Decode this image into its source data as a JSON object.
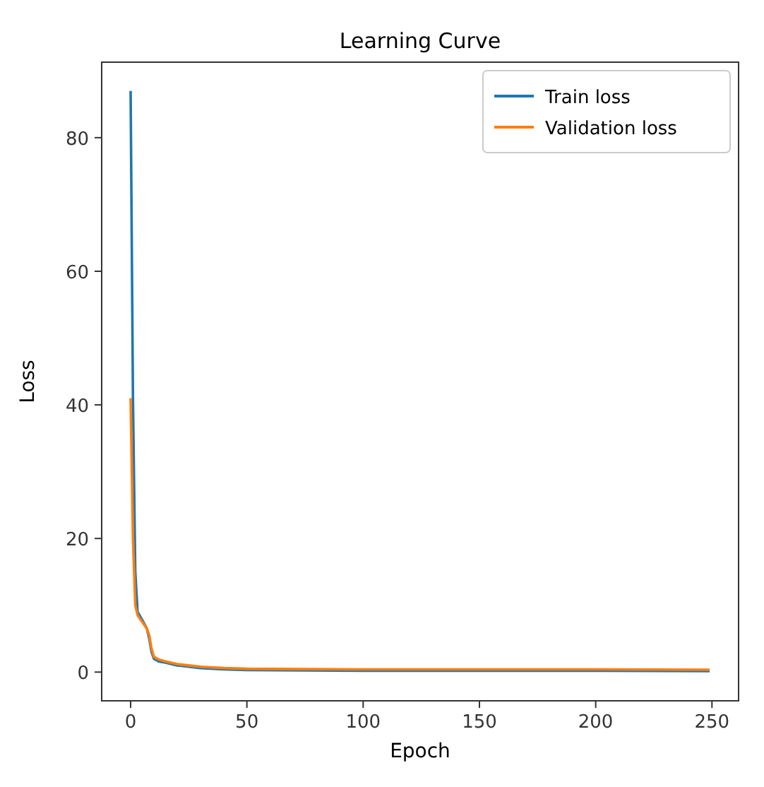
{
  "chart_data": {
    "type": "line",
    "title": "Learning Curve",
    "xlabel": "Epoch",
    "ylabel": "Loss",
    "xlim": [
      -12.45,
      261.45
    ],
    "ylim": [
      -4.3,
      91.3
    ],
    "xticks": [
      0,
      50,
      100,
      150,
      200,
      250
    ],
    "yticks": [
      0,
      20,
      40,
      60,
      80
    ],
    "legend": "top right",
    "grid": false,
    "series": [
      {
        "name": "Train loss",
        "color": "#1f77b4",
        "x": [
          0,
          1,
          2,
          3,
          5,
          7,
          8,
          9,
          10,
          12,
          15,
          20,
          25,
          30,
          40,
          50,
          75,
          100,
          150,
          200,
          249
        ],
        "values": [
          87,
          41,
          15,
          9,
          7.8,
          6.5,
          5,
          3,
          2,
          1.6,
          1.4,
          1.0,
          0.8,
          0.6,
          0.4,
          0.3,
          0.25,
          0.2,
          0.2,
          0.2,
          0.15
        ]
      },
      {
        "name": "Validation loss",
        "color": "#ff7f0e",
        "x": [
          0,
          1,
          2,
          3,
          5,
          7,
          8,
          9,
          10,
          12,
          15,
          20,
          25,
          30,
          40,
          50,
          75,
          100,
          150,
          200,
          249
        ],
        "values": [
          41,
          20,
          10,
          8.5,
          7.5,
          6.5,
          5.5,
          3.5,
          2.3,
          1.9,
          1.6,
          1.2,
          1.0,
          0.8,
          0.6,
          0.5,
          0.45,
          0.4,
          0.4,
          0.4,
          0.35
        ]
      }
    ]
  }
}
